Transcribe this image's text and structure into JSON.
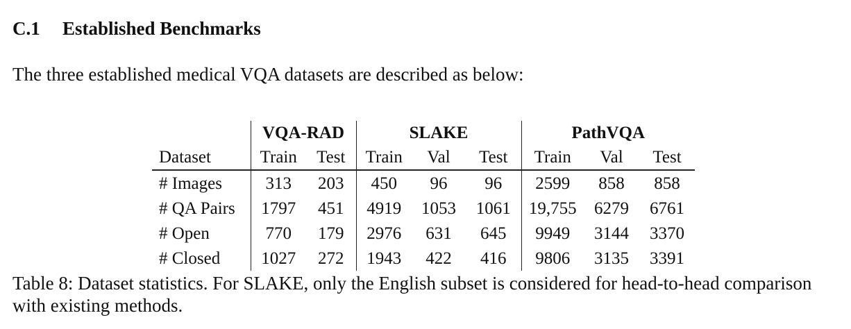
{
  "section": {
    "number": "C.1",
    "title": "Established Benchmarks"
  },
  "intro": "The three established medical VQA datasets are described as below:",
  "table": {
    "groups": [
      "VQA-RAD",
      "SLAKE",
      "PathVQA"
    ],
    "columns": [
      "Dataset",
      "Train",
      "Test",
      "Train",
      "Val",
      "Test",
      "Train",
      "Val",
      "Test"
    ],
    "rows": [
      [
        "# Images",
        "313",
        "203",
        "450",
        "96",
        "96",
        "2599",
        "858",
        "858"
      ],
      [
        "# QA Pairs",
        "1797",
        "451",
        "4919",
        "1053",
        "1061",
        "19,755",
        "6279",
        "6761"
      ],
      [
        "# Open",
        "770",
        "179",
        "2976",
        "631",
        "645",
        "9949",
        "3144",
        "3370"
      ],
      [
        "# Closed",
        "1027",
        "272",
        "1943",
        "422",
        "416",
        "9806",
        "3135",
        "3391"
      ]
    ]
  },
  "caption": "Table 8: Dataset statistics. For SLAKE, only the English subset is considered for head-to-head comparison with existing methods."
}
